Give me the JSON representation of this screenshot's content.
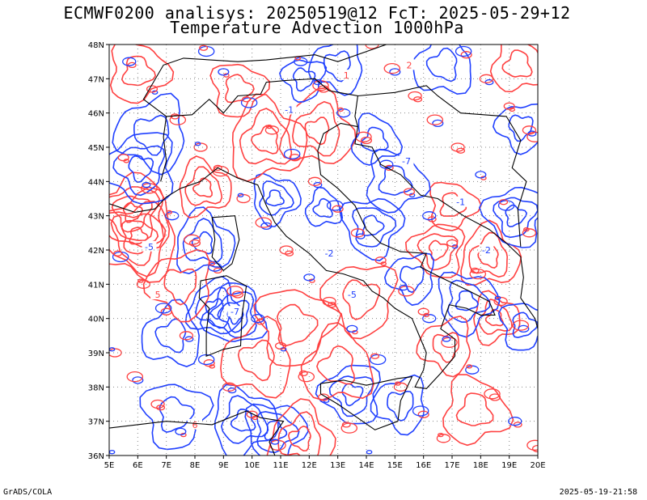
{
  "header": {
    "title_line1": "ECMWF0200 analisys: 20250519@12 FcT: 2025-05-29+12",
    "title_line2": "Temperature Advection 1000hPa"
  },
  "footer": {
    "left": "GrADS/COLA",
    "right": "2025-05-19-21:58"
  },
  "map": {
    "lon_range": [
      5,
      20
    ],
    "lat_range": [
      36,
      48
    ],
    "lon_ticks": [
      "5E",
      "6E",
      "7E",
      "8E",
      "9E",
      "10E",
      "11E",
      "12E",
      "13E",
      "14E",
      "15E",
      "16E",
      "17E",
      "18E",
      "19E",
      "20E"
    ],
    "lat_ticks": [
      "36N",
      "37N",
      "38N",
      "39N",
      "40N",
      "41N",
      "42N",
      "43N",
      "44N",
      "45N",
      "46N",
      "47N",
      "48N"
    ],
    "colors": {
      "negative": "#2040ff",
      "positive": "#ff4040",
      "coast": "#000000",
      "grid": "#888888"
    },
    "contour_labels": [
      "-1",
      "-2",
      "-5",
      "-7",
      "1",
      "2",
      "5",
      "6"
    ]
  }
}
